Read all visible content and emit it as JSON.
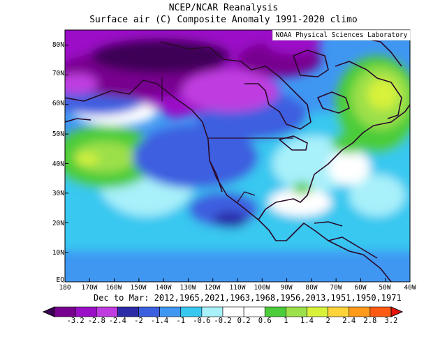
{
  "title": "NCEP/NCAR Reanalysis",
  "subtitle": "Surface air (C) Composite Anomaly 1991-2020 climo",
  "credit": "NOAA Physical Sciences Laboratory",
  "caption": "Dec to Mar: 2012,1965,2021,1963,1968,1956,2013,1951,1950,1971",
  "lat_labels": [
    "80N",
    "70N",
    "60N",
    "50N",
    "40N",
    "30N",
    "20N",
    "10N",
    "EQ"
  ],
  "lon_labels": [
    "180",
    "170W",
    "160W",
    "150W",
    "140W",
    "130W",
    "120W",
    "110W",
    "100W",
    "90W",
    "80W",
    "70W",
    "60W",
    "50W",
    "40W"
  ],
  "colorbar": {
    "labels": [
      "-3.2",
      "-2.8",
      "-2.4",
      "-2",
      "-1.4",
      "-1",
      "-0.6",
      "-0.2",
      "0.2",
      "0.6",
      "1",
      "1.4",
      "2",
      "2.4",
      "2.8",
      "3.2"
    ],
    "colors": [
      "#3d0057",
      "#78008f",
      "#9b0fc7",
      "#bf3de0",
      "#2c2ca8",
      "#3c5fe0",
      "#3f97f2",
      "#38c8f0",
      "#a8f0fa",
      "#ffffff",
      "#ffffff",
      "#4ccc3a",
      "#9ce04a",
      "#d8f23a",
      "#ffd33a",
      "#ff9a1a",
      "#ff5a14",
      "#e8140c"
    ]
  }
}
